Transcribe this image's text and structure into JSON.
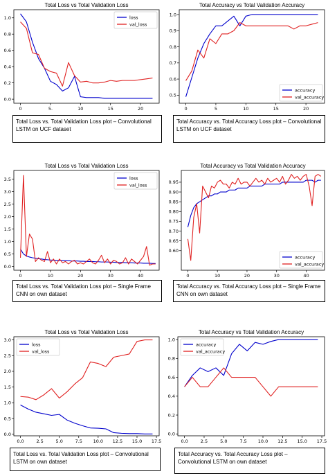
{
  "chart_data": [
    {
      "type": "line",
      "title": "Total Loss vs Total Validation Loss",
      "xlabel": "",
      "ylabel": "",
      "xlim": [
        -1.1,
        23.1
      ],
      "ylim": [
        -0.05,
        1.1
      ],
      "xticks": [
        0,
        5,
        10,
        15,
        20
      ],
      "xtick_labels": [
        "0",
        "5.",
        "10",
        "15",
        "20"
      ],
      "yticks": [
        0.0,
        0.2,
        0.4,
        0.6,
        0.8,
        1.0
      ],
      "ytick_labels": [
        "0.0",
        "0.2",
        "0.4",
        "0.6",
        "0.8",
        "1.0"
      ],
      "legend": "top-right",
      "series": [
        {
          "name": "loss",
          "color": "#0000cc",
          "x": [
            0,
            1,
            2,
            3,
            4,
            5,
            6,
            7,
            8,
            9,
            10,
            11,
            12,
            13,
            14,
            15,
            16,
            17,
            18,
            19,
            20,
            21,
            22
          ],
          "y": [
            1.05,
            0.95,
            0.7,
            0.5,
            0.38,
            0.22,
            0.18,
            0.1,
            0.14,
            0.28,
            0.03,
            0.02,
            0.02,
            0.02,
            0.01,
            0.01,
            0.01,
            0.01,
            0.01,
            0.01,
            0.01,
            0.01,
            0.01
          ]
        },
        {
          "name": "val_loss",
          "color": "#e02020",
          "x": [
            0,
            1,
            2,
            3,
            4,
            5,
            6,
            7,
            8,
            9,
            10,
            11,
            12,
            13,
            14,
            15,
            16,
            17,
            18,
            19,
            20,
            21,
            22
          ],
          "y": [
            0.95,
            0.87,
            0.57,
            0.55,
            0.38,
            0.34,
            0.32,
            0.16,
            0.45,
            0.29,
            0.21,
            0.22,
            0.2,
            0.2,
            0.21,
            0.23,
            0.22,
            0.23,
            0.23,
            0.23,
            0.24,
            0.25,
            0.26
          ]
        }
      ]
    },
    {
      "type": "line",
      "title": "Total Accuracy vs Total Validation Accuracy",
      "xlabel": "",
      "ylabel": "",
      "xlim": [
        -1.1,
        23.1
      ],
      "ylim": [
        0.45,
        1.03
      ],
      "xticks": [
        0,
        5,
        10,
        15,
        20
      ],
      "xtick_labels": [
        "0",
        "5",
        "10",
        "15",
        "20"
      ],
      "yticks": [
        0.5,
        0.6,
        0.7,
        0.8,
        0.9,
        1.0
      ],
      "ytick_labels": [
        "0.5",
        "0.6",
        "0.7",
        "0.8",
        "0.9",
        "1.0"
      ],
      "legend": "bottom-right",
      "series": [
        {
          "name": "accuracy",
          "color": "#0000cc",
          "x": [
            0,
            1,
            2,
            3,
            4,
            5,
            6,
            7,
            8,
            9,
            10,
            11,
            12,
            13,
            14,
            15,
            16,
            17,
            18,
            19,
            20,
            21,
            22
          ],
          "y": [
            0.49,
            0.61,
            0.73,
            0.82,
            0.88,
            0.93,
            0.93,
            0.96,
            0.99,
            0.93,
            0.99,
            1.0,
            1.0,
            1.0,
            1.0,
            1.0,
            1.0,
            1.0,
            1.0,
            1.0,
            1.0,
            1.0,
            1.0
          ]
        },
        {
          "name": "val_accuracy",
          "color": "#e02020",
          "x": [
            0,
            1,
            2,
            3,
            4,
            5,
            6,
            7,
            8,
            9,
            10,
            11,
            12,
            13,
            14,
            15,
            16,
            17,
            18,
            19,
            20,
            21,
            22
          ],
          "y": [
            0.59,
            0.65,
            0.78,
            0.73,
            0.85,
            0.82,
            0.88,
            0.88,
            0.9,
            0.95,
            0.93,
            0.93,
            0.93,
            0.93,
            0.93,
            0.93,
            0.93,
            0.93,
            0.91,
            0.93,
            0.93,
            0.94,
            0.95
          ]
        }
      ]
    },
    {
      "type": "line",
      "title": "Total Loss vs Total Validation Loss",
      "xlabel": "",
      "ylabel": "",
      "xlim": [
        -2.2,
        46.2
      ],
      "ylim": [
        -0.15,
        3.85
      ],
      "xticks": [
        0,
        10,
        20,
        30,
        40
      ],
      "xtick_labels": [
        "0",
        "10",
        "20",
        "30",
        "40"
      ],
      "yticks": [
        0.0,
        0.5,
        1.0,
        1.5,
        2.0,
        2.5,
        3.0,
        3.5
      ],
      "ytick_labels": [
        "0.0",
        "0.5",
        "1.0",
        "1.5",
        "2.0",
        "2.5",
        "3.0",
        "3.5"
      ],
      "legend": "top-right",
      "series": [
        {
          "name": "loss",
          "color": "#0000cc",
          "x": [
            0,
            1,
            2,
            3,
            4,
            5,
            6,
            7,
            8,
            9,
            10,
            11,
            12,
            13,
            14,
            15,
            16,
            17,
            18,
            19,
            20,
            21,
            22,
            23,
            24,
            25,
            26,
            27,
            28,
            29,
            30,
            31,
            32,
            33,
            34,
            35,
            36,
            37,
            38,
            39,
            40,
            41,
            42,
            43,
            44,
            45
          ],
          "y": [
            0.7,
            0.5,
            0.42,
            0.38,
            0.35,
            0.33,
            0.31,
            0.3,
            0.28,
            0.27,
            0.26,
            0.25,
            0.25,
            0.24,
            0.24,
            0.23,
            0.23,
            0.22,
            0.22,
            0.22,
            0.21,
            0.21,
            0.2,
            0.2,
            0.2,
            0.19,
            0.19,
            0.18,
            0.18,
            0.18,
            0.17,
            0.17,
            0.16,
            0.16,
            0.16,
            0.15,
            0.15,
            0.15,
            0.14,
            0.14,
            0.14,
            0.13,
            0.13,
            0.13,
            0.12,
            0.12
          ]
        },
        {
          "name": "val_loss",
          "color": "#e02020",
          "x": [
            0,
            1,
            2,
            3,
            4,
            5,
            6,
            7,
            8,
            9,
            10,
            11,
            12,
            13,
            14,
            15,
            16,
            17,
            18,
            19,
            20,
            21,
            22,
            23,
            24,
            25,
            26,
            27,
            28,
            29,
            30,
            31,
            32,
            33,
            34,
            35,
            36,
            37,
            38,
            39,
            40,
            41,
            42,
            43,
            44,
            45
          ],
          "y": [
            0.35,
            3.65,
            0.4,
            1.3,
            1.1,
            0.2,
            0.35,
            0.25,
            0.2,
            0.6,
            0.15,
            0.3,
            0.1,
            0.3,
            0.15,
            0.2,
            0.1,
            0.2,
            0.25,
            0.1,
            0.15,
            0.1,
            0.2,
            0.3,
            0.15,
            0.1,
            0.25,
            0.45,
            0.15,
            0.3,
            0.1,
            0.25,
            0.2,
            0.1,
            0.15,
            0.35,
            0.1,
            0.3,
            0.2,
            0.1,
            0.25,
            0.4,
            0.8,
            0.05,
            0.1,
            0.1
          ]
        }
      ]
    },
    {
      "type": "line",
      "title": "Total Accuracy vs Total Validation Accuracy",
      "xlabel": "",
      "ylabel": "",
      "xlim": [
        -2.2,
        46.2
      ],
      "ylim": [
        0.5,
        1.01
      ],
      "xticks": [
        0,
        10,
        20,
        30,
        40
      ],
      "xtick_labels": [
        "0",
        "10",
        "20",
        "30",
        "40"
      ],
      "yticks": [
        0.6,
        0.65,
        0.7,
        0.75,
        0.8,
        0.85,
        0.9,
        0.95
      ],
      "ytick_labels": [
        "0.60",
        "0.65",
        "0.70",
        "0.75",
        "0.80",
        "0.85",
        "0.90",
        "0.95"
      ],
      "legend": "bottom-right",
      "series": [
        {
          "name": "accuracy",
          "color": "#0000cc",
          "x": [
            0,
            1,
            2,
            3,
            4,
            5,
            6,
            7,
            8,
            9,
            10,
            11,
            12,
            13,
            14,
            15,
            16,
            17,
            18,
            19,
            20,
            21,
            22,
            23,
            24,
            25,
            26,
            27,
            28,
            29,
            30,
            31,
            32,
            33,
            34,
            35,
            36,
            37,
            38,
            39,
            40,
            41,
            42,
            43,
            44,
            45
          ],
          "y": [
            0.72,
            0.78,
            0.82,
            0.84,
            0.85,
            0.86,
            0.87,
            0.88,
            0.88,
            0.89,
            0.89,
            0.9,
            0.9,
            0.9,
            0.91,
            0.91,
            0.91,
            0.92,
            0.92,
            0.92,
            0.92,
            0.93,
            0.93,
            0.93,
            0.93,
            0.93,
            0.94,
            0.94,
            0.94,
            0.94,
            0.94,
            0.94,
            0.95,
            0.95,
            0.95,
            0.95,
            0.95,
            0.95,
            0.95,
            0.95,
            0.96,
            0.96,
            0.96,
            0.95,
            0.96,
            0.96
          ]
        },
        {
          "name": "val_accuracy",
          "color": "#e02020",
          "x": [
            0,
            1,
            2,
            3,
            4,
            5,
            6,
            7,
            8,
            9,
            10,
            11,
            12,
            13,
            14,
            15,
            16,
            17,
            18,
            19,
            20,
            21,
            22,
            23,
            24,
            25,
            26,
            27,
            28,
            29,
            30,
            31,
            32,
            33,
            34,
            35,
            36,
            37,
            38,
            39,
            40,
            41,
            42,
            43,
            44,
            45
          ],
          "y": [
            0.66,
            0.55,
            0.77,
            0.84,
            0.69,
            0.93,
            0.9,
            0.87,
            0.93,
            0.92,
            0.95,
            0.96,
            0.94,
            0.94,
            0.92,
            0.95,
            0.94,
            0.97,
            0.94,
            0.95,
            0.95,
            0.93,
            0.95,
            0.97,
            0.95,
            0.96,
            0.94,
            0.97,
            0.95,
            0.96,
            0.97,
            0.95,
            0.98,
            0.94,
            0.96,
            0.99,
            0.97,
            0.98,
            0.96,
            0.98,
            0.99,
            0.93,
            0.83,
            0.98,
            0.99,
            0.98
          ]
        }
      ]
    },
    {
      "type": "line",
      "title": "Total Loss vs Total Validation Loss",
      "xlabel": "",
      "ylabel": "",
      "xlim": [
        -0.85,
        17.85
      ],
      "ylim": [
        -0.05,
        3.1
      ],
      "xticks": [
        0,
        2.5,
        5,
        7.5,
        10,
        12.5,
        15,
        17.5
      ],
      "xtick_labels": [
        "0.0",
        "2.5",
        "5.0",
        "7.5",
        "10.0",
        "12.5",
        "15.0",
        "17.5"
      ],
      "yticks": [
        0.0,
        0.5,
        1.0,
        1.5,
        2.0,
        2.5,
        3.0
      ],
      "ytick_labels": [
        "0.0",
        "0.5",
        "1.0",
        "1.5",
        "2.0",
        "2.5",
        "3.0"
      ],
      "legend": "top-left",
      "series": [
        {
          "name": "loss",
          "color": "#0000cc",
          "x": [
            0,
            1,
            2,
            3,
            4,
            5,
            6,
            7,
            8,
            9,
            10,
            11,
            12,
            13,
            14,
            15,
            16,
            17
          ],
          "y": [
            0.93,
            0.8,
            0.7,
            0.65,
            0.6,
            0.63,
            0.45,
            0.35,
            0.27,
            0.2,
            0.19,
            0.17,
            0.05,
            0.03,
            0.02,
            0.02,
            0.01,
            0.01
          ]
        },
        {
          "name": "val_loss",
          "color": "#e02020",
          "x": [
            0,
            1,
            2,
            3,
            4,
            5,
            6,
            7,
            8,
            9,
            10,
            11,
            12,
            13,
            14,
            15,
            16,
            17
          ],
          "y": [
            1.2,
            1.18,
            1.1,
            1.25,
            1.45,
            1.15,
            1.35,
            1.6,
            1.8,
            2.3,
            2.25,
            2.15,
            2.45,
            2.5,
            2.55,
            2.95,
            3.0,
            3.0
          ]
        }
      ]
    },
    {
      "type": "line",
      "title": "Total Accuracy vs Total Validation Accuracy",
      "xlabel": "",
      "ylabel": "",
      "xlim": [
        -0.85,
        17.85
      ],
      "ylim": [
        -0.02,
        1.03
      ],
      "xticks": [
        0,
        2.5,
        5,
        7.5,
        10,
        12.5,
        15,
        17.5
      ],
      "xtick_labels": [
        "0.0",
        "2.5",
        "5.0",
        "7.5",
        "10.0",
        "12.5",
        "15.0",
        "17.5"
      ],
      "yticks": [
        0.0,
        0.2,
        0.4,
        0.6,
        0.8,
        1.0
      ],
      "ytick_labels": [
        "0.0",
        "0.2",
        "0.4",
        "0.6",
        "0.8",
        "1.0"
      ],
      "legend": "top-left",
      "series": [
        {
          "name": "accuracy",
          "color": "#0000cc",
          "x": [
            0,
            1,
            2,
            3,
            4,
            5,
            6,
            7,
            8,
            9,
            10,
            11,
            12,
            13,
            14,
            15,
            16,
            17
          ],
          "y": [
            0.5,
            0.62,
            0.7,
            0.66,
            0.7,
            0.62,
            0.85,
            0.95,
            0.88,
            0.97,
            0.95,
            0.98,
            1.0,
            1.0,
            1.0,
            1.0,
            1.0,
            1.0
          ]
        },
        {
          "name": "val_accuracy",
          "color": "#e02020",
          "x": [
            0,
            1,
            2,
            3,
            4,
            5,
            6,
            7,
            8,
            9,
            10,
            11,
            12,
            13,
            14,
            15,
            16,
            17
          ],
          "y": [
            0.5,
            0.6,
            0.5,
            0.5,
            0.6,
            0.7,
            0.6,
            0.6,
            0.6,
            0.6,
            0.5,
            0.4,
            0.5,
            0.5,
            0.5,
            0.5,
            0.5,
            0.5
          ]
        }
      ]
    }
  ],
  "captions": [
    "Total Loss vs. Total Validation Loss plot – Convolutional LSTM on UCF dataset",
    "Total Accuracy vs. Total Accuracy Loss plot – Convolutional LSTM on UCF dataset",
    "Total Loss vs. Total Validation Loss plot – Single Frame CNN on own dataset",
    "Total Accuracy vs. Total Accuracy Loss plot – Single Frame CNN on own dataset",
    "Total Loss vs. Total Validation Loss plot – Convolutional LSTM on own dataset",
    "Total Accuracy vs. Total Accuracy Loss plot – Convolutional LSTM on own dataset"
  ]
}
